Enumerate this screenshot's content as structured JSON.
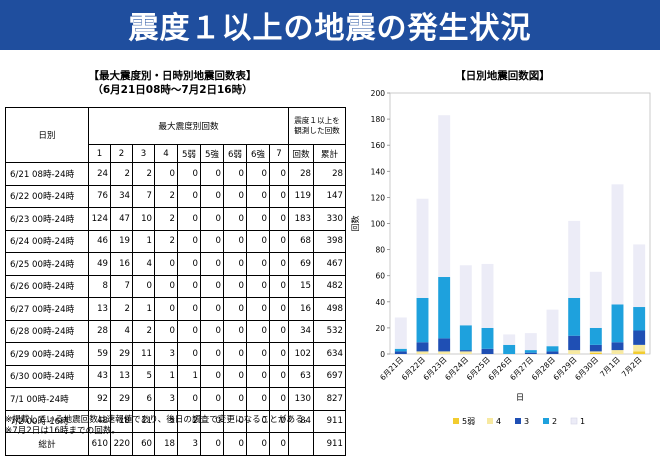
{
  "page": {
    "title": "震度１以上の地震の発生状況"
  },
  "table": {
    "title": "【最大震度別・日時別地震回数表】",
    "subtitle": "（6月21日08時～7月2日16時）",
    "col_date": "日別",
    "col_group": "最大震度別回数",
    "col_observed": "震度１以上を観測した回数",
    "intensity_headers": [
      "1",
      "2",
      "3",
      "4",
      "5弱",
      "5強",
      "6弱",
      "6強",
      "7"
    ],
    "count_header": "回数",
    "cumulative_header": "累計",
    "rows": [
      {
        "date": "6/21 08時-24時",
        "v": [
          "24",
          "2",
          "2",
          "0",
          "0",
          "0",
          "0",
          "0",
          "0"
        ],
        "count": "28",
        "cum": "28"
      },
      {
        "date": "6/22 00時-24時",
        "v": [
          "76",
          "34",
          "7",
          "2",
          "0",
          "0",
          "0",
          "0",
          "0"
        ],
        "count": "119",
        "cum": "147"
      },
      {
        "date": "6/23 00時-24時",
        "v": [
          "124",
          "47",
          "10",
          "2",
          "0",
          "0",
          "0",
          "0",
          "0"
        ],
        "count": "183",
        "cum": "330"
      },
      {
        "date": "6/24 00時-24時",
        "v": [
          "46",
          "19",
          "1",
          "2",
          "0",
          "0",
          "0",
          "0",
          "0"
        ],
        "count": "68",
        "cum": "398"
      },
      {
        "date": "6/25 00時-24時",
        "v": [
          "49",
          "16",
          "4",
          "0",
          "0",
          "0",
          "0",
          "0",
          "0"
        ],
        "count": "69",
        "cum": "467"
      },
      {
        "date": "6/26 00時-24時",
        "v": [
          "8",
          "7",
          "0",
          "0",
          "0",
          "0",
          "0",
          "0",
          "0"
        ],
        "count": "15",
        "cum": "482"
      },
      {
        "date": "6/27 00時-24時",
        "v": [
          "13",
          "2",
          "1",
          "0",
          "0",
          "0",
          "0",
          "0",
          "0"
        ],
        "count": "16",
        "cum": "498"
      },
      {
        "date": "6/28 00時-24時",
        "v": [
          "28",
          "4",
          "2",
          "0",
          "0",
          "0",
          "0",
          "0",
          "0"
        ],
        "count": "34",
        "cum": "532"
      },
      {
        "date": "6/29 00時-24時",
        "v": [
          "59",
          "29",
          "11",
          "3",
          "0",
          "0",
          "0",
          "0",
          "0"
        ],
        "count": "102",
        "cum": "634"
      },
      {
        "date": "6/30 00時-24時",
        "v": [
          "43",
          "13",
          "5",
          "1",
          "1",
          "0",
          "0",
          "0",
          "0"
        ],
        "count": "63",
        "cum": "697"
      },
      {
        "date": "7/1 00時-24時",
        "v": [
          "92",
          "29",
          "6",
          "3",
          "0",
          "0",
          "0",
          "0",
          "0"
        ],
        "count": "130",
        "cum": "827"
      },
      {
        "date": "7/2 00時-16時",
        "v": [
          "48",
          "18",
          "11",
          "5",
          "2",
          "0",
          "0",
          "0",
          "0"
        ],
        "count": "84",
        "cum": "911"
      }
    ],
    "total": {
      "label": "総計",
      "v": [
        "610",
        "220",
        "60",
        "18",
        "3",
        "0",
        "0",
        "0",
        "0"
      ],
      "count": "",
      "cum": "911"
    }
  },
  "notes": [
    "※掲載している地震回数は速報値であり、後日の調査で変更になることがある。",
    "※7月2日は16時までの回数。"
  ],
  "chart_data": {
    "type": "bar",
    "stacked": true,
    "title": "【日別地震回数図】",
    "xlabel": "日",
    "ylabel": "回数",
    "ylim": [
      0,
      200
    ],
    "yticks": [
      0,
      20,
      40,
      60,
      80,
      100,
      120,
      140,
      160,
      180,
      200
    ],
    "categories": [
      "6月21日",
      "6月22日",
      "6月23日",
      "6月24日",
      "6月25日",
      "6月26日",
      "6月27日",
      "6月28日",
      "6月29日",
      "6月30日",
      "7月1日",
      "7月2日"
    ],
    "series": [
      {
        "name": "5弱",
        "color": "#f2cc2f",
        "values": [
          0,
          0,
          0,
          0,
          0,
          0,
          0,
          0,
          0,
          1,
          0,
          2
        ]
      },
      {
        "name": "4",
        "color": "#f7e9a0",
        "values": [
          0,
          2,
          2,
          2,
          0,
          0,
          0,
          0,
          3,
          1,
          3,
          5
        ]
      },
      {
        "name": "3",
        "color": "#1f4fb4",
        "values": [
          2,
          7,
          10,
          1,
          4,
          0,
          1,
          2,
          11,
          5,
          6,
          11
        ]
      },
      {
        "name": "2",
        "color": "#1ea1dd",
        "values": [
          2,
          34,
          47,
          19,
          16,
          7,
          2,
          4,
          29,
          13,
          29,
          18
        ]
      },
      {
        "name": "1",
        "color": "#ececf7",
        "values": [
          24,
          76,
          124,
          46,
          49,
          8,
          13,
          28,
          59,
          43,
          92,
          48
        ]
      }
    ],
    "legend_position": "bottom",
    "grid": false
  }
}
